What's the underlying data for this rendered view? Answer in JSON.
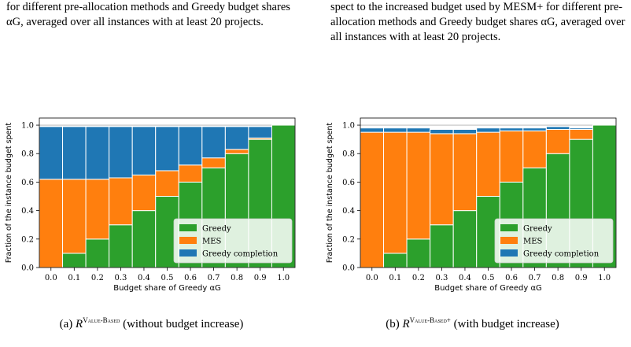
{
  "captions": {
    "left_top": "for different pre-allocation methods and Greedy budget shares αG, averaged over all instances with at least 20 projects.",
    "right_top": "spect to the increased budget used by MESM+ for different pre-allocation methods and Greedy budget shares αG, averaged over all instances with at least 20 projects.",
    "left_sub_prefix": "(a) ",
    "left_sub_sup": "Value-Based",
    "left_sub_suffix": " (without budget increase)",
    "right_sub_prefix": "(b) ",
    "right_sub_sup": "Value-Based+",
    "right_sub_suffix": " (with budget increase)"
  },
  "colors": {
    "greedy": "#2ca02c",
    "mes": "#ff7f0e",
    "completion": "#1f77b4"
  },
  "chart_data": [
    {
      "type": "bar",
      "stacked": true,
      "categories": [
        "0.0",
        "0.1",
        "0.2",
        "0.3",
        "0.4",
        "0.5",
        "0.6",
        "0.7",
        "0.8",
        "0.9",
        "1.0"
      ],
      "series": [
        {
          "name": "Greedy",
          "values": [
            0.0,
            0.1,
            0.2,
            0.3,
            0.4,
            0.5,
            0.6,
            0.7,
            0.8,
            0.9,
            1.0
          ]
        },
        {
          "name": "MES",
          "values": [
            0.62,
            0.52,
            0.42,
            0.33,
            0.25,
            0.18,
            0.12,
            0.07,
            0.03,
            0.01,
            0.0
          ]
        },
        {
          "name": "Greedy completion",
          "values": [
            0.37,
            0.37,
            0.37,
            0.36,
            0.34,
            0.31,
            0.27,
            0.22,
            0.16,
            0.08,
            0.0
          ]
        }
      ],
      "ylabel": "Fraction of the instance budget spent",
      "xlabel": "Budget share of Greedy αG",
      "yticks": [
        "0.0",
        "0.2",
        "0.4",
        "0.6",
        "0.8",
        "1.0"
      ],
      "ylim": [
        0,
        1.05
      ],
      "grid": "y",
      "legend_position": "bottom-right"
    },
    {
      "type": "bar",
      "stacked": true,
      "categories": [
        "0.0",
        "0.1",
        "0.2",
        "0.3",
        "0.4",
        "0.5",
        "0.6",
        "0.7",
        "0.8",
        "0.9",
        "1.0"
      ],
      "series": [
        {
          "name": "Greedy",
          "values": [
            0.0,
            0.1,
            0.2,
            0.3,
            0.4,
            0.5,
            0.6,
            0.7,
            0.8,
            0.9,
            1.0
          ]
        },
        {
          "name": "MES",
          "values": [
            0.95,
            0.85,
            0.75,
            0.64,
            0.54,
            0.45,
            0.36,
            0.26,
            0.17,
            0.07,
            0.0
          ]
        },
        {
          "name": "Greedy completion",
          "values": [
            0.03,
            0.03,
            0.03,
            0.03,
            0.03,
            0.03,
            0.02,
            0.02,
            0.02,
            0.01,
            0.0
          ]
        }
      ],
      "ylabel": "Fraction of the instance budget spent",
      "xlabel": "Budget share of Greedy αG",
      "yticks": [
        "0.0",
        "0.2",
        "0.4",
        "0.6",
        "0.8",
        "1.0"
      ],
      "ylim": [
        0,
        1.05
      ],
      "grid": "y",
      "legend_position": "bottom-right"
    }
  ]
}
